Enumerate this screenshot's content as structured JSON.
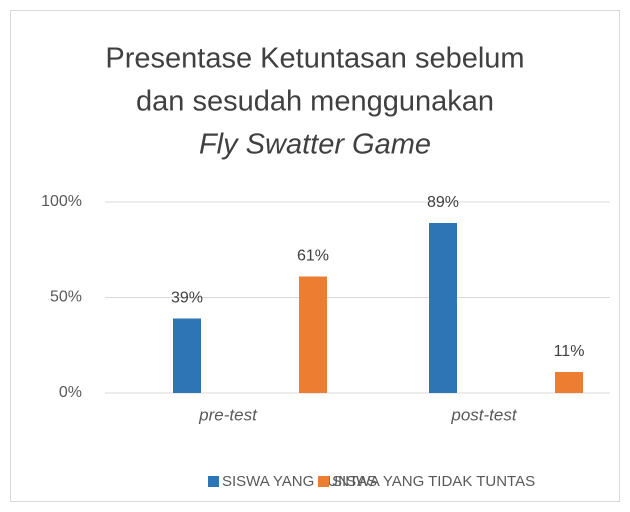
{
  "chart_data": {
    "type": "bar",
    "title": [
      "Presentase Ketuntasan sebelum",
      "dan sesudah menggunakan",
      "Fly Swatter Game"
    ],
    "categories": [
      "pre-test",
      "post-test"
    ],
    "series": [
      {
        "name": "SISWA YANG TUNTAS",
        "color": "#2e75b6",
        "values": [
          39,
          89
        ],
        "value_labels": [
          "39%",
          "89%"
        ]
      },
      {
        "name": "SISWA YANG TIDAK TUNTAS",
        "color": "#ed7d31",
        "values": [
          61,
          11
        ],
        "value_labels": [
          "61%",
          "11%"
        ]
      }
    ],
    "ylim": [
      0,
      100
    ],
    "yticks": [
      {
        "value": 0,
        "label": "0%"
      },
      {
        "value": 50,
        "label": "50%"
      },
      {
        "value": 100,
        "label": "100%"
      }
    ],
    "grid": true,
    "legend": "bottom"
  }
}
